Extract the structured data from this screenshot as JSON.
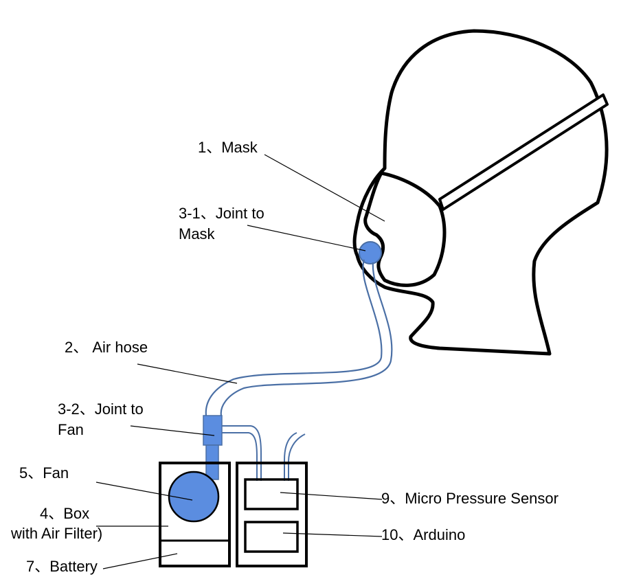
{
  "colors": {
    "outline": "#000000",
    "component_fill": "#5b8de0",
    "hose": "#4a6fa5",
    "background": "#ffffff"
  },
  "labels": {
    "mask": "1、Mask",
    "joint_mask_line1": "3-1、Joint to",
    "joint_mask_line2": "Mask",
    "air_hose": "2、 Air hose",
    "joint_fan_line1": "3-2、Joint to",
    "joint_fan_line2": "Fan",
    "fan": "5、Fan",
    "box_line1": "4、Box",
    "box_line2": "with Air Filter)",
    "battery": "7、Battery",
    "pressure_sensor": "9、Micro Pressure Sensor",
    "arduino": "10、Arduino"
  }
}
